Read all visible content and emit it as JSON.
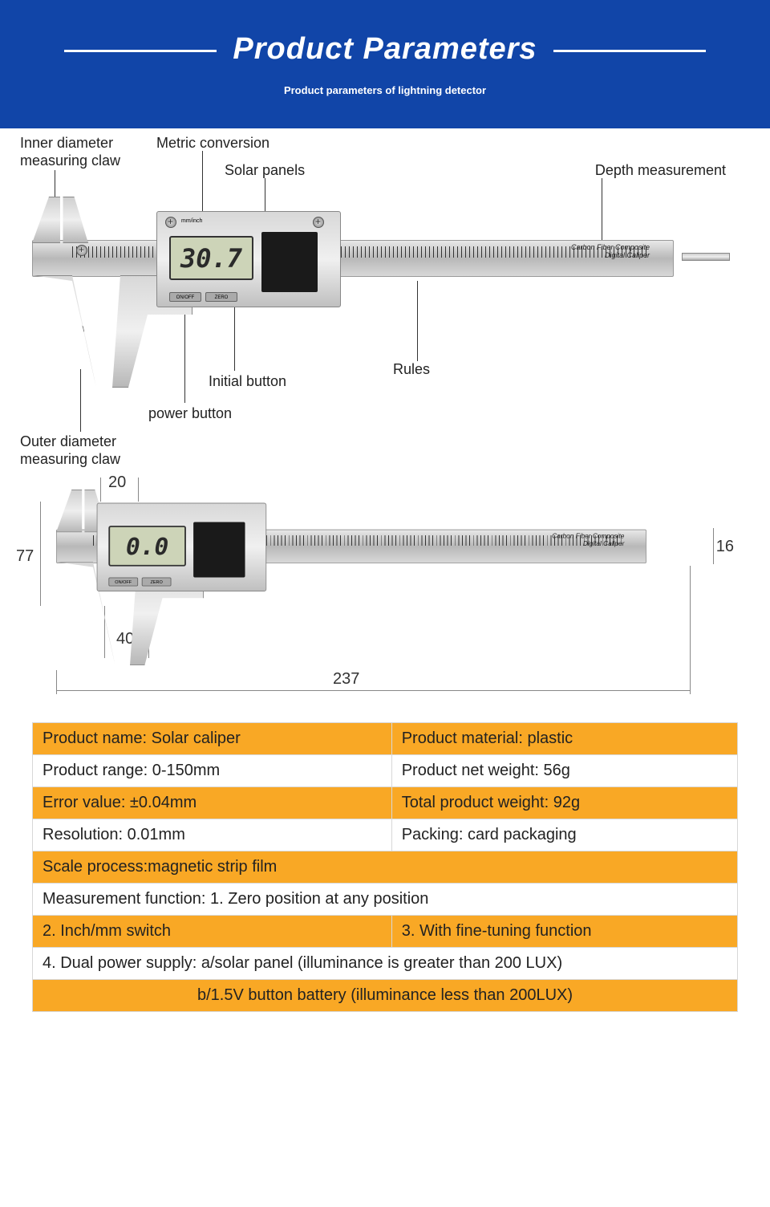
{
  "header": {
    "title": "Product Parameters",
    "subtitle": "Product parameters of lightning detector"
  },
  "labels": {
    "inner": "Inner diameter\nmeasuring claw",
    "metric": "Metric conversion",
    "solar": "Solar panels",
    "depth": "Depth measurement",
    "rules": "Rules",
    "initial": "Initial button",
    "power": "power button",
    "outer": "Outer diameter\nmeasuring claw"
  },
  "lcd1": "30.7",
  "lcd2": "0.0",
  "btn_onoff": "ON/OFF",
  "btn_zero": "ZERO",
  "btn_mminch": "mm/inch",
  "ruler_nums": [
    "0",
    "10",
    "20",
    "30",
    "70",
    "80",
    "90",
    "100",
    "110",
    "120",
    "130",
    "140",
    "150"
  ],
  "ruler_units": {
    "mm": "mm",
    "in": "in"
  },
  "ruler_text1": "Carbon Fiber Composite",
  "ruler_text2": "Digital Caliper",
  "dims": {
    "d20": "20",
    "d77": "77",
    "d40": "40",
    "d237": "237",
    "d16": "16"
  },
  "specs": [
    [
      {
        "t": "Product name: Solar caliper",
        "c": "y"
      },
      {
        "t": "Product material: plastic",
        "c": "y"
      }
    ],
    [
      {
        "t": "Product range: 0-150mm",
        "c": "w"
      },
      {
        "t": "Product net weight: 56g",
        "c": "w"
      }
    ],
    [
      {
        "t": "Error value: ±0.04mm",
        "c": "y"
      },
      {
        "t": "Total product weight: 92g",
        "c": "y"
      }
    ],
    [
      {
        "t": "Resolution: 0.01mm",
        "c": "w"
      },
      {
        "t": "Packing: card packaging",
        "c": "w"
      }
    ],
    [
      {
        "t": "Scale process:magnetic strip film",
        "c": "y",
        "s": 2
      }
    ],
    [
      {
        "t": "Measurement function: 1. Zero position at any position",
        "c": "w",
        "s": 2
      }
    ],
    [
      {
        "t": "2. Inch/mm switch",
        "c": "y"
      },
      {
        "t": "3. With fine-tuning function",
        "c": "y"
      }
    ],
    [
      {
        "t": "4. Dual power supply: a/solar panel (illuminance is greater than 200 LUX)",
        "c": "w",
        "s": 2
      }
    ],
    [
      {
        "t": "b/1.5V button battery (illuminance less than 200LUX)",
        "c": "y",
        "s": 2,
        "a": "center"
      }
    ]
  ],
  "colors": {
    "header_bg": "#1145a8",
    "accent": "#f9a825",
    "border": "#d8d8d8"
  }
}
